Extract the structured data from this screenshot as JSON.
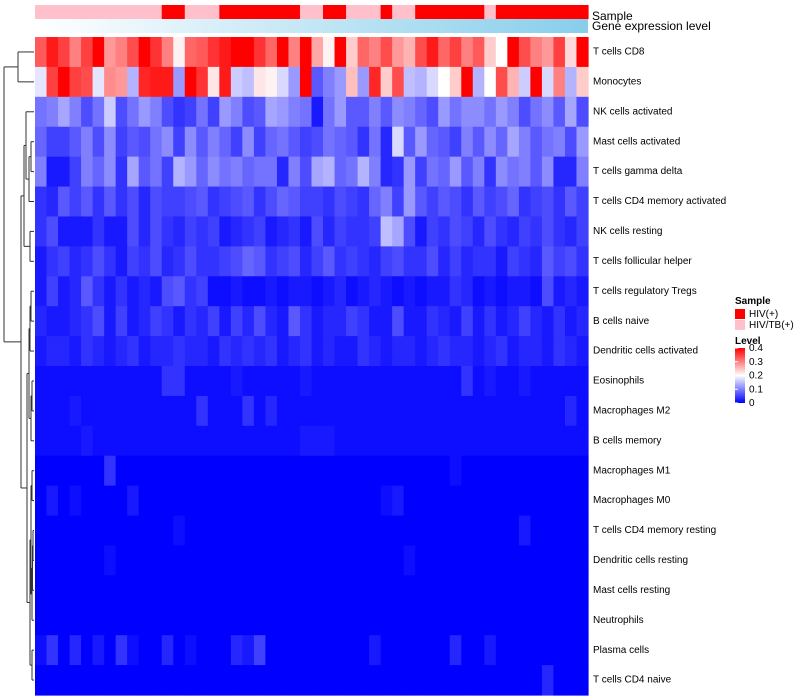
{
  "chart_data": {
    "type": "heatmap",
    "column_annotations": [
      {
        "name": "Sample"
      },
      {
        "name": "Gene expression level"
      }
    ],
    "rows": [
      "T cells CD8",
      "Monocytes",
      "NK cells activated",
      "Mast cells activated",
      "T cells gamma delta",
      "T cells CD4 memory activated",
      "NK cells resting",
      "T cells follicular helper",
      "T cells regulatory  Tregs",
      "B cells naive",
      "Dendritic cells activated",
      "Eosinophils",
      "Macrophages M2",
      "B cells memory",
      "Macrophages M1",
      "Macrophages M0",
      "T cells CD4 memory resting",
      "Dendritic cells resting",
      "Mast cells resting",
      "Neutrophils",
      "Plasma cells",
      "T cells CD4 naive"
    ],
    "sample_groups": [
      "HIV/TB(+)",
      "HIV/TB(+)",
      "HIV/TB(+)",
      "HIV/TB(+)",
      "HIV/TB(+)",
      "HIV/TB(+)",
      "HIV/TB(+)",
      "HIV/TB(+)",
      "HIV/TB(+)",
      "HIV/TB(+)",
      "HIV/TB(+)",
      "HIV(+)",
      "HIV(+)",
      "HIV/TB(+)",
      "HIV/TB(+)",
      "HIV/TB(+)",
      "HIV(+)",
      "HIV(+)",
      "HIV(+)",
      "HIV(+)",
      "HIV(+)",
      "HIV(+)",
      "HIV(+)",
      "HIV/TB(+)",
      "HIV/TB(+)",
      "HIV(+)",
      "HIV(+)",
      "HIV/TB(+)",
      "HIV/TB(+)",
      "HIV/TB(+)",
      "HIV(+)",
      "HIV/TB(+)",
      "HIV/TB(+)",
      "HIV(+)",
      "HIV(+)",
      "HIV(+)",
      "HIV(+)",
      "HIV(+)",
      "HIV(+)",
      "HIV/TB(+)",
      "HIV(+)",
      "HIV(+)",
      "HIV(+)",
      "HIV(+)",
      "HIV(+)",
      "HIV(+)",
      "HIV(+)",
      "HIV(+)"
    ],
    "legend": {
      "sample_title": "Sample",
      "sample_entries": [
        {
          "label": "HIV(+)",
          "color": "#ff0000"
        },
        {
          "label": "HIV/TB(+)",
          "color": "#ffc0cb"
        }
      ],
      "level_title": "Level",
      "level_ticks": [
        "0.4",
        "0.3",
        "0.2",
        "0.1",
        "0"
      ],
      "level_tick_values": [
        0.4,
        0.3,
        0.2,
        0.1,
        0
      ],
      "level_range": [
        0,
        0.4
      ],
      "position": "right"
    },
    "colors": {
      "low": "#0000ff",
      "mid": "#ffffff",
      "high": "#ff0000",
      "sample_hiv": "#ff0000",
      "sample_hivtb": "#ffc0cb",
      "gene_level": "#87ceeb"
    },
    "values": [
      [
        0.33,
        0.38,
        0.35,
        0.3,
        0.35,
        0.4,
        0.28,
        0.3,
        0.34,
        0.4,
        0.36,
        0.3,
        0.21,
        0.32,
        0.33,
        0.36,
        0.38,
        0.4,
        0.4,
        0.36,
        0.32,
        0.4,
        0.3,
        0.4,
        0.27,
        0.21,
        0.4,
        0.24,
        0.32,
        0.3,
        0.34,
        0.28,
        0.26,
        0.34,
        0.38,
        0.32,
        0.35,
        0.3,
        0.33,
        0.24,
        0.2,
        0.4,
        0.34,
        0.3,
        0.28,
        0.35,
        0.23,
        0.4
      ],
      [
        0.18,
        0.35,
        0.4,
        0.35,
        0.34,
        0.18,
        0.29,
        0.28,
        0.14,
        0.37,
        0.38,
        0.38,
        0.12,
        0.4,
        0.36,
        0.22,
        0.38,
        0.16,
        0.15,
        0.22,
        0.21,
        0.17,
        0.12,
        0.4,
        0.07,
        0.1,
        0.12,
        0.25,
        0.12,
        0.37,
        0.24,
        0.34,
        0.15,
        0.14,
        0.17,
        0.2,
        0.24,
        0.4,
        0.14,
        0.2,
        0.34,
        0.26,
        0.16,
        0.4,
        0.17,
        0.3,
        0.14,
        0.24
      ],
      [
        0.09,
        0.1,
        0.13,
        0.1,
        0.06,
        0.09,
        0.16,
        0.06,
        0.09,
        0.12,
        0.1,
        0.06,
        0.04,
        0.05,
        0.09,
        0.05,
        0.12,
        0.1,
        0.06,
        0.07,
        0.13,
        0.12,
        0.1,
        0.09,
        0.02,
        0.09,
        0.12,
        0.07,
        0.07,
        0.1,
        0.07,
        0.11,
        0.1,
        0.08,
        0.06,
        0.12,
        0.09,
        0.11,
        0.11,
        0.09,
        0.12,
        0.1,
        0.06,
        0.09,
        0.11,
        0.07,
        0.13,
        0.06
      ],
      [
        0.08,
        0.05,
        0.05,
        0.07,
        0.1,
        0.06,
        0.11,
        0.05,
        0.07,
        0.06,
        0.09,
        0.11,
        0.05,
        0.11,
        0.07,
        0.1,
        0.08,
        0.05,
        0.11,
        0.05,
        0.08,
        0.09,
        0.07,
        0.05,
        0.06,
        0.09,
        0.08,
        0.07,
        0.04,
        0.09,
        0.03,
        0.17,
        0.07,
        0.12,
        0.08,
        0.07,
        0.05,
        0.1,
        0.07,
        0.11,
        0.08,
        0.13,
        0.1,
        0.07,
        0.09,
        0.1,
        0.06,
        0.12
      ],
      [
        0.1,
        0.02,
        0.02,
        0.05,
        0.1,
        0.08,
        0.11,
        0.04,
        0.13,
        0.07,
        0.09,
        0.05,
        0.14,
        0.12,
        0.08,
        0.11,
        0.09,
        0.1,
        0.08,
        0.09,
        0.09,
        0.03,
        0.1,
        0.06,
        0.13,
        0.14,
        0.08,
        0.09,
        0.14,
        0.1,
        0.03,
        0.04,
        0.12,
        0.05,
        0.09,
        0.08,
        0.12,
        0.07,
        0.1,
        0.04,
        0.11,
        0.09,
        0.1,
        0.07,
        0.11,
        0.03,
        0.03,
        0.1
      ],
      [
        0.04,
        0.03,
        0.07,
        0.05,
        0.07,
        0.04,
        0.07,
        0.04,
        0.06,
        0.03,
        0.06,
        0.05,
        0.05,
        0.06,
        0.07,
        0.04,
        0.05,
        0.06,
        0.07,
        0.04,
        0.06,
        0.08,
        0.07,
        0.05,
        0.05,
        0.04,
        0.06,
        0.05,
        0.04,
        0.08,
        0.1,
        0.05,
        0.12,
        0.07,
        0.05,
        0.07,
        0.06,
        0.04,
        0.07,
        0.05,
        0.06,
        0.08,
        0.04,
        0.05,
        0.06,
        0.04,
        0.07,
        0.05
      ],
      [
        0.04,
        0.06,
        0.02,
        0.02,
        0.02,
        0.04,
        0.02,
        0.02,
        0.06,
        0.03,
        0.06,
        0.04,
        0.03,
        0.05,
        0.04,
        0.05,
        0.02,
        0.03,
        0.04,
        0.05,
        0.02,
        0.03,
        0.04,
        0.02,
        0.06,
        0.03,
        0.05,
        0.04,
        0.04,
        0.05,
        0.15,
        0.13,
        0.06,
        0.02,
        0.05,
        0.04,
        0.06,
        0.05,
        0.03,
        0.06,
        0.04,
        0.03,
        0.05,
        0.04,
        0.06,
        0.04,
        0.03,
        0.05
      ],
      [
        0.02,
        0.04,
        0.05,
        0.03,
        0.04,
        0.06,
        0.04,
        0.02,
        0.05,
        0.04,
        0.06,
        0.03,
        0.04,
        0.06,
        0.04,
        0.04,
        0.05,
        0.06,
        0.08,
        0.07,
        0.04,
        0.05,
        0.06,
        0.03,
        0.05,
        0.07,
        0.04,
        0.05,
        0.04,
        0.03,
        0.05,
        0.06,
        0.04,
        0.04,
        0.06,
        0.03,
        0.05,
        0.03,
        0.04,
        0.04,
        0.02,
        0.05,
        0.04,
        0.03,
        0.07,
        0.05,
        0.06,
        0.04
      ],
      [
        0.02,
        0.05,
        0.02,
        0.03,
        0.07,
        0.04,
        0.02,
        0.04,
        0.02,
        0.03,
        0.02,
        0.06,
        0.07,
        0.04,
        0.05,
        0.01,
        0.01,
        0.02,
        0.01,
        0.01,
        0.02,
        0.01,
        0.02,
        0.02,
        0.01,
        0.02,
        0.03,
        0.01,
        0.02,
        0.03,
        0.02,
        0.01,
        0.02,
        0.01,
        0.02,
        0.02,
        0.04,
        0.03,
        0.01,
        0.02,
        0.01,
        0.02,
        0.02,
        0.01,
        0.06,
        0.02,
        0.03,
        0.02
      ],
      [
        0.03,
        0.02,
        0.02,
        0.03,
        0.04,
        0.06,
        0.02,
        0.05,
        0.02,
        0.03,
        0.05,
        0.04,
        0.02,
        0.04,
        0.03,
        0.05,
        0.02,
        0.05,
        0.03,
        0.06,
        0.03,
        0.02,
        0.07,
        0.04,
        0.02,
        0.03,
        0.03,
        0.05,
        0.04,
        0.02,
        0.02,
        0.06,
        0.02,
        0.02,
        0.04,
        0.03,
        0.02,
        0.05,
        0.02,
        0.04,
        0.02,
        0.03,
        0.05,
        0.03,
        0.02,
        0.04,
        0.02,
        0.03
      ],
      [
        0.02,
        0.03,
        0.03,
        0.02,
        0.04,
        0.03,
        0.02,
        0.03,
        0.04,
        0.02,
        0.03,
        0.03,
        0.04,
        0.03,
        0.03,
        0.02,
        0.04,
        0.03,
        0.04,
        0.03,
        0.04,
        0.02,
        0.03,
        0.04,
        0.02,
        0.03,
        0.02,
        0.02,
        0.04,
        0.03,
        0.02,
        0.03,
        0.03,
        0.02,
        0.03,
        0.04,
        0.03,
        0.03,
        0.02,
        0.03,
        0.04,
        0.02,
        0.03,
        0.03,
        0.02,
        0.04,
        0.03,
        0.02
      ],
      [
        0.01,
        0.01,
        0.01,
        0.01,
        0.01,
        0.01,
        0.01,
        0.01,
        0.01,
        0.01,
        0.01,
        0.04,
        0.04,
        0.01,
        0.01,
        0.01,
        0.01,
        0.02,
        0.01,
        0.01,
        0.01,
        0.01,
        0.01,
        0.02,
        0.01,
        0.01,
        0.01,
        0.01,
        0.01,
        0.01,
        0.01,
        0.01,
        0.01,
        0.01,
        0.01,
        0.01,
        0.01,
        0.04,
        0.01,
        0.02,
        0.01,
        0.01,
        0.02,
        0.01,
        0.01,
        0.01,
        0.01,
        0.01
      ],
      [
        0.01,
        0.01,
        0.01,
        0.02,
        0.01,
        0.01,
        0.01,
        0.01,
        0.01,
        0.01,
        0.01,
        0.01,
        0.01,
        0.01,
        0.04,
        0.01,
        0.01,
        0.01,
        0.04,
        0.01,
        0.03,
        0.01,
        0.01,
        0.01,
        0.01,
        0.01,
        0.01,
        0.01,
        0.01,
        0.01,
        0.01,
        0.01,
        0.01,
        0.01,
        0.01,
        0.01,
        0.01,
        0.01,
        0.01,
        0.01,
        0.01,
        0.01,
        0.01,
        0.01,
        0.01,
        0.01,
        0.03,
        0.01
      ],
      [
        0.01,
        0.01,
        0.01,
        0.01,
        0.02,
        0.01,
        0.01,
        0.01,
        0.01,
        0.01,
        0.01,
        0.01,
        0.01,
        0.01,
        0.01,
        0.01,
        0.01,
        0.01,
        0.01,
        0.01,
        0.01,
        0.01,
        0.01,
        0.02,
        0.02,
        0.02,
        0.01,
        0.01,
        0.01,
        0.01,
        0.01,
        0.01,
        0.01,
        0.01,
        0.01,
        0.01,
        0.01,
        0.01,
        0.01,
        0.01,
        0.01,
        0.01,
        0.01,
        0.01,
        0.01,
        0.01,
        0.01,
        0.01
      ],
      [
        0.0,
        0.0,
        0.0,
        0.0,
        0.0,
        0.0,
        0.04,
        0.0,
        0.0,
        0.0,
        0.0,
        0.0,
        0.0,
        0.0,
        0.0,
        0.0,
        0.0,
        0.0,
        0.0,
        0.0,
        0.0,
        0.0,
        0.0,
        0.0,
        0.0,
        0.0,
        0.0,
        0.0,
        0.0,
        0.0,
        0.0,
        0.0,
        0.0,
        0.0,
        0.0,
        0.0,
        0.01,
        0.0,
        0.0,
        0.0,
        0.0,
        0.0,
        0.0,
        0.0,
        0.0,
        0.0,
        0.0,
        0.0
      ],
      [
        0.0,
        0.02,
        0.0,
        0.01,
        0.0,
        0.0,
        0.0,
        0.0,
        0.02,
        0.0,
        0.0,
        0.0,
        0.0,
        0.0,
        0.0,
        0.0,
        0.0,
        0.0,
        0.0,
        0.0,
        0.0,
        0.0,
        0.0,
        0.0,
        0.0,
        0.0,
        0.0,
        0.0,
        0.0,
        0.0,
        0.01,
        0.02,
        0.0,
        0.0,
        0.0,
        0.0,
        0.0,
        0.0,
        0.0,
        0.0,
        0.0,
        0.0,
        0.0,
        0.0,
        0.0,
        0.0,
        0.0,
        0.0
      ],
      [
        0.0,
        0.0,
        0.0,
        0.0,
        0.0,
        0.0,
        0.0,
        0.0,
        0.0,
        0.0,
        0.0,
        0.0,
        0.01,
        0.0,
        0.0,
        0.0,
        0.0,
        0.0,
        0.0,
        0.0,
        0.0,
        0.0,
        0.0,
        0.0,
        0.0,
        0.0,
        0.0,
        0.0,
        0.0,
        0.0,
        0.0,
        0.0,
        0.0,
        0.0,
        0.0,
        0.0,
        0.0,
        0.0,
        0.0,
        0.0,
        0.0,
        0.0,
        0.02,
        0.0,
        0.0,
        0.0,
        0.0,
        0.0
      ],
      [
        0.0,
        0.0,
        0.0,
        0.0,
        0.0,
        0.0,
        0.01,
        0.0,
        0.0,
        0.0,
        0.0,
        0.0,
        0.0,
        0.0,
        0.0,
        0.0,
        0.0,
        0.0,
        0.0,
        0.0,
        0.0,
        0.0,
        0.0,
        0.0,
        0.0,
        0.0,
        0.0,
        0.0,
        0.0,
        0.0,
        0.0,
        0.0,
        0.01,
        0.0,
        0.0,
        0.0,
        0.0,
        0.0,
        0.0,
        0.0,
        0.0,
        0.0,
        0.0,
        0.0,
        0.0,
        0.0,
        0.0,
        0.0
      ],
      [
        0.0,
        0.0,
        0.0,
        0.0,
        0.0,
        0.0,
        0.0,
        0.0,
        0.0,
        0.0,
        0.0,
        0.0,
        0.0,
        0.0,
        0.0,
        0.0,
        0.0,
        0.0,
        0.0,
        0.0,
        0.0,
        0.0,
        0.0,
        0.0,
        0.0,
        0.0,
        0.0,
        0.0,
        0.0,
        0.0,
        0.0,
        0.0,
        0.0,
        0.0,
        0.0,
        0.0,
        0.0,
        0.0,
        0.0,
        0.0,
        0.0,
        0.0,
        0.0,
        0.0,
        0.0,
        0.0,
        0.0,
        0.0
      ],
      [
        0.0,
        0.0,
        0.0,
        0.0,
        0.0,
        0.0,
        0.0,
        0.0,
        0.0,
        0.0,
        0.0,
        0.0,
        0.0,
        0.0,
        0.0,
        0.0,
        0.0,
        0.0,
        0.0,
        0.0,
        0.0,
        0.0,
        0.0,
        0.0,
        0.0,
        0.0,
        0.0,
        0.0,
        0.0,
        0.0,
        0.0,
        0.0,
        0.0,
        0.0,
        0.0,
        0.0,
        0.0,
        0.0,
        0.0,
        0.0,
        0.0,
        0.0,
        0.0,
        0.0,
        0.0,
        0.0,
        0.0,
        0.0
      ],
      [
        0.01,
        0.04,
        0.0,
        0.03,
        0.0,
        0.02,
        0.0,
        0.04,
        0.01,
        0.0,
        0.0,
        0.03,
        0.0,
        0.01,
        0.0,
        0.0,
        0.0,
        0.03,
        0.02,
        0.05,
        0.0,
        0.0,
        0.0,
        0.0,
        0.0,
        0.0,
        0.0,
        0.0,
        0.0,
        0.02,
        0.0,
        0.0,
        0.0,
        0.0,
        0.0,
        0.0,
        0.03,
        0.0,
        0.0,
        0.02,
        0.0,
        0.0,
        0.0,
        0.0,
        0.0,
        0.0,
        0.0,
        0.0
      ],
      [
        0.0,
        0.0,
        0.0,
        0.0,
        0.0,
        0.0,
        0.0,
        0.0,
        0.0,
        0.0,
        0.0,
        0.0,
        0.0,
        0.0,
        0.0,
        0.0,
        0.0,
        0.0,
        0.0,
        0.0,
        0.0,
        0.0,
        0.0,
        0.0,
        0.0,
        0.0,
        0.0,
        0.0,
        0.0,
        0.0,
        0.0,
        0.0,
        0.0,
        0.0,
        0.0,
        0.0,
        0.0,
        0.0,
        0.0,
        0.0,
        0.0,
        0.0,
        0.0,
        0.0,
        0.03,
        0.0,
        0.0,
        0.0
      ]
    ]
  }
}
